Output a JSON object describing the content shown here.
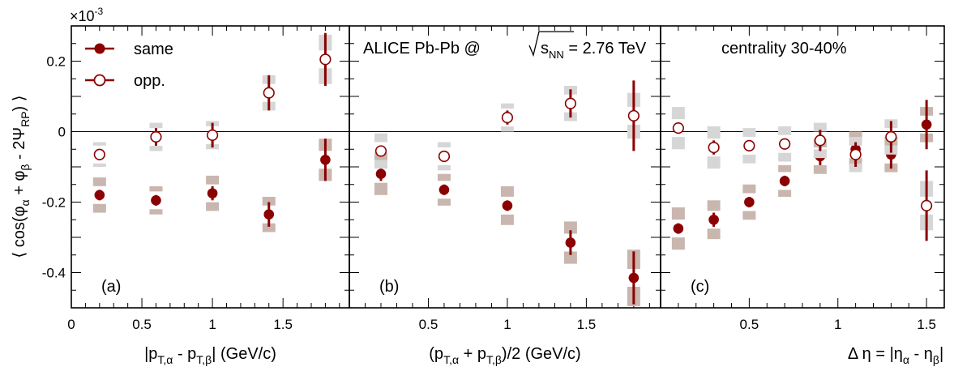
{
  "figure": {
    "exponent_label": "×10",
    "exponent_power": "-3",
    "ylabel": {
      "pre": "⟨ cos(φ",
      "a": "α",
      "mid": " + φ",
      "b": "β",
      "rest": " - 2Ψ",
      "rp": "RP",
      "end": ") ⟩"
    },
    "yticks": [
      0.2,
      0,
      -0.2,
      -0.4
    ],
    "ytick_labels": [
      "0.2",
      "0",
      "-0.2",
      "-0.4"
    ],
    "legend": {
      "same": "same",
      "opp": "opp."
    },
    "header_b": {
      "pre": "ALICE Pb-Pb @ ",
      "s": "s",
      "nn": "NN",
      "post": " = 2.76 TeV"
    },
    "header_c": "centrality 30-40%",
    "colors": {
      "marker": "#8b0000",
      "sys_same": "#c9b6ae",
      "sys_opp": "#d6d6d6",
      "axis": "#000000"
    }
  },
  "chart_data": [
    {
      "type": "scatter",
      "panel_label": "(a)",
      "xlabel": {
        "pre": "|p",
        "s1": "T,α",
        "mid": " - p",
        "s2": "T,β",
        "post": "| (GeV/c)"
      },
      "x_ticks": [
        0,
        0.5,
        1,
        1.5
      ],
      "x_tick_labels": [
        "0",
        "0.5",
        "1",
        "1.5"
      ],
      "xlim": [
        0,
        1.97
      ],
      "ylim": [
        -0.5,
        0.3
      ],
      "y_scale_factor": "×10^-3",
      "series": [
        {
          "name": "same",
          "marker": "filled-circle",
          "x": [
            0.2,
            0.6,
            1.0,
            1.4,
            1.8
          ],
          "y": [
            -0.18,
            -0.195,
            -0.175,
            -0.235,
            -0.08
          ],
          "stat_err": [
            0.015,
            0.015,
            0.02,
            0.035,
            0.06
          ],
          "sys_err": [
            0.05,
            0.04,
            0.05,
            0.05,
            0.06
          ]
        },
        {
          "name": "opp.",
          "marker": "open-circle",
          "x": [
            0.2,
            0.6,
            1.0,
            1.4,
            1.8
          ],
          "y": [
            -0.065,
            -0.015,
            -0.01,
            0.11,
            0.205
          ],
          "stat_err": [
            0.015,
            0.025,
            0.035,
            0.05,
            0.075
          ],
          "sys_err": [
            0.035,
            0.04,
            0.04,
            0.05,
            0.07
          ]
        }
      ]
    },
    {
      "type": "scatter",
      "panel_label": "(b)",
      "xlabel": {
        "pre": "(p",
        "s1": "T,α",
        "mid": " + p",
        "s2": "T,β",
        "post": ")/2 (GeV/c)"
      },
      "x_ticks": [
        0.5,
        1,
        1.5
      ],
      "x_tick_labels": [
        "0.5",
        "1",
        "1.5"
      ],
      "xlim": [
        0,
        1.97
      ],
      "ylim": [
        -0.5,
        0.3
      ],
      "series": [
        {
          "name": "same",
          "marker": "filled-circle",
          "x": [
            0.2,
            0.6,
            1.0,
            1.4,
            1.8
          ],
          "y": [
            -0.12,
            -0.165,
            -0.21,
            -0.315,
            -0.415
          ],
          "stat_err": [
            0.02,
            0.015,
            0.015,
            0.035,
            0.075
          ],
          "sys_err": [
            0.06,
            0.045,
            0.055,
            0.06,
            0.08
          ]
        },
        {
          "name": "opp.",
          "marker": "open-circle",
          "x": [
            0.2,
            0.6,
            1.0,
            1.4,
            1.8
          ],
          "y": [
            -0.055,
            -0.07,
            0.04,
            0.08,
            0.045
          ],
          "stat_err": [
            0.015,
            0.01,
            0.02,
            0.04,
            0.1
          ],
          "sys_err": [
            0.05,
            0.04,
            0.04,
            0.05,
            0.065
          ]
        }
      ]
    },
    {
      "type": "scatter",
      "panel_label": "(c)",
      "xlabel": {
        "pre": "Δ η = |η",
        "s1": "α",
        "mid": " - η",
        "s2": "β",
        "post": "|"
      },
      "x_ticks": [
        0.5,
        1,
        1.5
      ],
      "x_tick_labels": [
        "0.5",
        "1",
        "1.5"
      ],
      "xlim": [
        0,
        1.6
      ],
      "ylim": [
        -0.5,
        0.3
      ],
      "series": [
        {
          "name": "same",
          "marker": "filled-circle",
          "x": [
            0.1,
            0.3,
            0.5,
            0.7,
            0.9,
            1.1,
            1.3,
            1.5
          ],
          "y": [
            -0.275,
            -0.25,
            -0.2,
            -0.14,
            -0.07,
            -0.05,
            -0.065,
            0.02
          ],
          "stat_err": [
            0.015,
            0.02,
            0.015,
            0.015,
            0.025,
            0.03,
            0.04,
            0.07
          ],
          "sys_err": [
            0.06,
            0.055,
            0.05,
            0.045,
            0.05,
            0.05,
            0.05,
            0.05
          ]
        },
        {
          "name": "opp.",
          "marker": "open-circle",
          "x": [
            0.1,
            0.3,
            0.5,
            0.7,
            0.9,
            1.1,
            1.3,
            1.5
          ],
          "y": [
            0.01,
            -0.045,
            -0.04,
            -0.035,
            -0.025,
            -0.065,
            -0.015,
            -0.21
          ],
          "stat_err": [
            0.015,
            0.02,
            0.015,
            0.015,
            0.03,
            0.035,
            0.045,
            0.1
          ],
          "sys_err": [
            0.06,
            0.06,
            0.05,
            0.05,
            0.05,
            0.05,
            0.05,
            0.07
          ]
        }
      ]
    }
  ]
}
